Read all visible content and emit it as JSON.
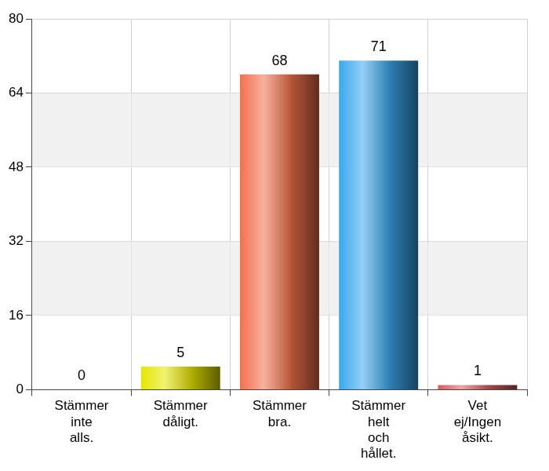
{
  "chart_data": {
    "type": "bar",
    "categories": [
      "Stämmer inte alls.",
      "Stämmer dåligt.",
      "Stämmer bra.",
      "Stämmer helt och hållet.",
      "Vet ej/Ingen åsikt."
    ],
    "values": [
      0,
      5,
      68,
      71,
      1
    ],
    "colors": [
      "#3a3ab0",
      "#e6e600",
      "#f2704c",
      "#3aa8ec",
      "#d85c5c"
    ],
    "ylim": [
      0,
      80
    ],
    "yticks": [
      0,
      16,
      32,
      48,
      64,
      80
    ],
    "grid": true,
    "data_labels": true
  }
}
